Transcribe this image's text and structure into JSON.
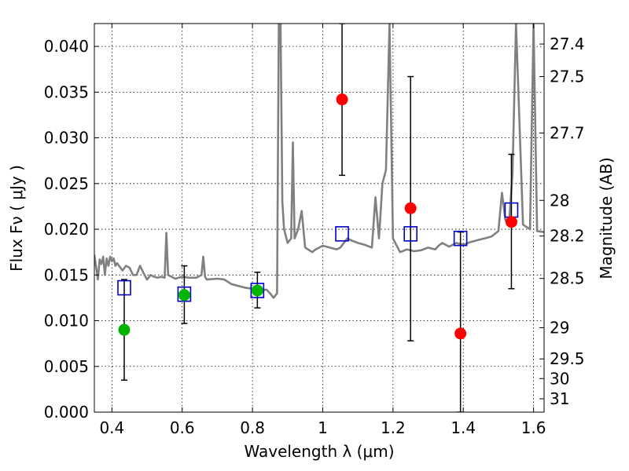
{
  "chart_data": {
    "type": "scatter",
    "xlabel": "Wavelength  λ (μm)",
    "ylabel": "Flux  Fν  ( μJy )",
    "y2label": "Magnitude (AB)",
    "xlim": [
      0.35,
      1.63
    ],
    "ylim": [
      0.0,
      0.0425
    ],
    "grid": true,
    "x_ticks": [
      0.4,
      0.6,
      0.8,
      1.0,
      1.2,
      1.4,
      1.6
    ],
    "x_tick_labels": [
      "0.4",
      "0.6",
      "0.8",
      "1",
      "1.2",
      "1.4",
      "1.6"
    ],
    "y_ticks": [
      0.0,
      0.005,
      0.01,
      0.015,
      0.02,
      0.025,
      0.03,
      0.035,
      0.04
    ],
    "y_tick_labels": [
      "0.000",
      "0.005",
      "0.010",
      "0.015",
      "0.020",
      "0.025",
      "0.030",
      "0.035",
      "0.040"
    ],
    "y2_ticks": [
      {
        "label": "27.4",
        "flux": 0.04026
      },
      {
        "label": "27.5",
        "flux": 0.0367
      },
      {
        "label": "27.7",
        "flux": 0.03053
      },
      {
        "label": "28",
        "flux": 0.02316
      },
      {
        "label": "28.2",
        "flux": 0.01926
      },
      {
        "label": "28.5",
        "flux": 0.01462
      },
      {
        "label": "29",
        "flux": 0.00923
      },
      {
        "label": "29.5",
        "flux": 0.00582
      },
      {
        "label": "30",
        "flux": 0.00367
      },
      {
        "label": "31",
        "flux": 0.00146
      }
    ],
    "colors": {
      "spectrum": "#808080",
      "model_marker": "#0000cc",
      "green_marker": "#00b400",
      "red_marker": "#ff0000",
      "errorbar": "#000000"
    },
    "series": [
      {
        "kind": "model_photometry",
        "marker": "open-square",
        "x": [
          0.435,
          0.606,
          0.814,
          1.055,
          1.25,
          1.392,
          1.537
        ],
        "y": [
          0.0136,
          0.0129,
          0.0133,
          0.0195,
          0.0195,
          0.019,
          0.0221
        ]
      },
      {
        "kind": "observed_optical",
        "marker": "filled-circle",
        "x": [
          0.435,
          0.606,
          0.814
        ],
        "y": [
          0.009,
          0.0128,
          0.0133
        ],
        "yerr_low": [
          0.0035,
          0.0097,
          0.0114
        ],
        "yerr_high": [
          0.0145,
          0.016,
          0.0153
        ]
      },
      {
        "kind": "observed_nir",
        "marker": "filled-circle",
        "x": [
          1.055,
          1.25,
          1.392,
          1.537
        ],
        "y": [
          0.0342,
          0.0223,
          0.0086,
          0.0208
        ],
        "yerr_low": [
          0.0259,
          0.0078,
          0.0,
          0.0135
        ],
        "yerr_high": [
          0.0425,
          0.0367,
          0.0197,
          0.0282
        ]
      },
      {
        "kind": "spectrum",
        "line": true,
        "x": [
          0.35,
          0.36,
          0.365,
          0.37,
          0.375,
          0.38,
          0.385,
          0.39,
          0.395,
          0.4,
          0.405,
          0.41,
          0.415,
          0.42,
          0.43,
          0.44,
          0.45,
          0.46,
          0.47,
          0.48,
          0.49,
          0.5,
          0.51,
          0.52,
          0.53,
          0.54,
          0.55,
          0.555,
          0.56,
          0.57,
          0.58,
          0.59,
          0.6,
          0.62,
          0.64,
          0.655,
          0.66,
          0.665,
          0.67,
          0.7,
          0.72,
          0.74,
          0.76,
          0.78,
          0.8,
          0.82,
          0.84,
          0.85,
          0.86,
          0.87,
          0.875,
          0.88,
          0.885,
          0.89,
          0.9,
          0.91,
          0.915,
          0.92,
          0.93,
          0.94,
          0.95,
          0.97,
          0.98,
          0.99,
          1.0,
          1.02,
          1.04,
          1.05,
          1.06,
          1.07,
          1.08,
          1.1,
          1.12,
          1.14,
          1.15,
          1.16,
          1.17,
          1.18,
          1.19,
          1.2,
          1.22,
          1.24,
          1.26,
          1.28,
          1.3,
          1.32,
          1.33,
          1.34,
          1.36,
          1.38,
          1.4,
          1.42,
          1.44,
          1.46,
          1.48,
          1.5,
          1.51,
          1.52,
          1.53,
          1.54,
          1.55,
          1.57,
          1.59,
          1.6,
          1.61,
          1.63
        ],
        "y": [
          0.0172,
          0.0145,
          0.0167,
          0.0162,
          0.017,
          0.015,
          0.0168,
          0.016,
          0.017,
          0.0165,
          0.0168,
          0.016,
          0.0163,
          0.016,
          0.0155,
          0.016,
          0.0158,
          0.015,
          0.015,
          0.016,
          0.0152,
          0.0145,
          0.015,
          0.0148,
          0.0147,
          0.0148,
          0.0147,
          0.0196,
          0.015,
          0.0148,
          0.0146,
          0.0147,
          0.0148,
          0.0147,
          0.0147,
          0.015,
          0.017,
          0.0148,
          0.0145,
          0.0146,
          0.0145,
          0.014,
          0.0138,
          0.0136,
          0.0135,
          0.0133,
          0.0134,
          0.013,
          0.0125,
          0.013,
          0.0425,
          0.0425,
          0.023,
          0.02,
          0.0185,
          0.019,
          0.0295,
          0.019,
          0.02,
          0.022,
          0.018,
          0.0175,
          0.0178,
          0.018,
          0.0182,
          0.018,
          0.0178,
          0.018,
          0.0185,
          0.019,
          0.0188,
          0.0185,
          0.0183,
          0.018,
          0.0235,
          0.019,
          0.025,
          0.0265,
          0.0425,
          0.019,
          0.0175,
          0.0178,
          0.0176,
          0.0177,
          0.018,
          0.0178,
          0.0182,
          0.0185,
          0.0181,
          0.0185,
          0.0183,
          0.0186,
          0.0188,
          0.019,
          0.0192,
          0.0198,
          0.024,
          0.021,
          0.0205,
          0.026,
          0.0425,
          0.0205,
          0.02,
          0.0425,
          0.0198,
          0.0197
        ]
      }
    ]
  }
}
